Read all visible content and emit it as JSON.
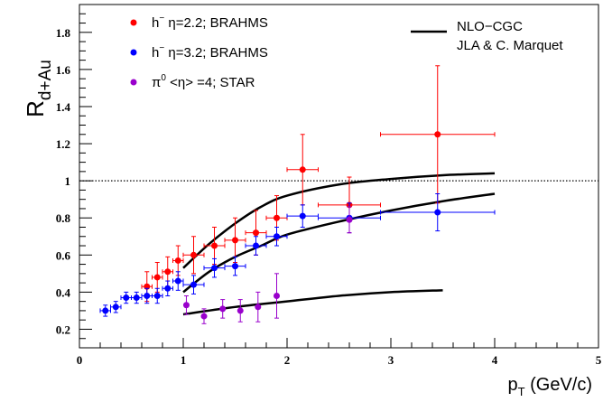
{
  "chart_data": {
    "type": "scatter",
    "xlabel_main": "p",
    "xlabel_sub": "T",
    "xlabel_unit": " (GeV/c)",
    "ylabel_main": "R",
    "ylabel_sub": "d+Au",
    "xlim": [
      0,
      5
    ],
    "ylim": [
      0.1,
      1.95
    ],
    "x_ticks": [
      0,
      1,
      2,
      3,
      4,
      5
    ],
    "y_ticks": [
      0.2,
      0.4,
      0.6,
      0.8,
      1,
      1.2,
      1.4,
      1.6,
      1.8
    ],
    "reference_line": {
      "y": 1,
      "style": "dotted"
    },
    "legend": {
      "placement": "top-left",
      "entries": [
        {
          "main": "h",
          "sup": "−",
          "rest": " η=2.2; BRAHMS",
          "color": "#ff0000"
        },
        {
          "main": "h",
          "sup": "−",
          "rest": " η=3.2; BRAHMS",
          "color": "#0000ff"
        },
        {
          "main": "π",
          "sup": "0",
          "rest": "  <η> =4; STAR",
          "color": "#9900cc"
        }
      ]
    },
    "theory_legend": {
      "placement": "top-right",
      "line1": "NLO−CGC",
      "line2": "JLA & C. Marquet"
    },
    "series": [
      {
        "color": "#ff0000",
        "points": [
          {
            "x": 0.65,
            "y": 0.43,
            "xerr": 0.05,
            "yerr": 0.08
          },
          {
            "x": 0.75,
            "y": 0.48,
            "xerr": 0.05,
            "yerr": 0.08
          },
          {
            "x": 0.85,
            "y": 0.51,
            "xerr": 0.05,
            "yerr": 0.08
          },
          {
            "x": 0.95,
            "y": 0.57,
            "xerr": 0.05,
            "yerr": 0.08
          },
          {
            "x": 1.1,
            "y": 0.6,
            "xerr": 0.1,
            "yerr": 0.1
          },
          {
            "x": 1.3,
            "y": 0.65,
            "xerr": 0.1,
            "yerr": 0.1
          },
          {
            "x": 1.5,
            "y": 0.68,
            "xerr": 0.1,
            "yerr": 0.12
          },
          {
            "x": 1.7,
            "y": 0.72,
            "xerr": 0.1,
            "yerr": 0.12
          },
          {
            "x": 1.9,
            "y": 0.8,
            "xerr": 0.1,
            "yerr": 0.12
          },
          {
            "x": 2.15,
            "y": 1.06,
            "xerr": 0.15,
            "yerr": 0.19
          },
          {
            "x": 2.6,
            "y": 0.87,
            "xerr": 0.3,
            "yerr": 0.15
          },
          {
            "x": 3.45,
            "y": 1.25,
            "xerr": 0.55,
            "yerr": 0.37
          }
        ]
      },
      {
        "color": "#0000ff",
        "points": [
          {
            "x": 0.25,
            "y": 0.3,
            "xerr": 0.05,
            "yerr": 0.03
          },
          {
            "x": 0.35,
            "y": 0.32,
            "xerr": 0.05,
            "yerr": 0.03
          },
          {
            "x": 0.45,
            "y": 0.37,
            "xerr": 0.05,
            "yerr": 0.03
          },
          {
            "x": 0.55,
            "y": 0.37,
            "xerr": 0.05,
            "yerr": 0.03
          },
          {
            "x": 0.65,
            "y": 0.38,
            "xerr": 0.05,
            "yerr": 0.04
          },
          {
            "x": 0.75,
            "y": 0.38,
            "xerr": 0.05,
            "yerr": 0.04
          },
          {
            "x": 0.85,
            "y": 0.42,
            "xerr": 0.05,
            "yerr": 0.04
          },
          {
            "x": 0.95,
            "y": 0.46,
            "xerr": 0.05,
            "yerr": 0.05
          },
          {
            "x": 1.1,
            "y": 0.44,
            "xerr": 0.1,
            "yerr": 0.05
          },
          {
            "x": 1.3,
            "y": 0.53,
            "xerr": 0.1,
            "yerr": 0.05
          },
          {
            "x": 1.5,
            "y": 0.54,
            "xerr": 0.1,
            "yerr": 0.05
          },
          {
            "x": 1.7,
            "y": 0.65,
            "xerr": 0.1,
            "yerr": 0.05
          },
          {
            "x": 1.9,
            "y": 0.7,
            "xerr": 0.1,
            "yerr": 0.05
          },
          {
            "x": 2.15,
            "y": 0.81,
            "xerr": 0.15,
            "yerr": 0.06
          },
          {
            "x": 2.6,
            "y": 0.8,
            "xerr": 0.3,
            "yerr": 0.08
          },
          {
            "x": 3.45,
            "y": 0.83,
            "xerr": 0.55,
            "yerr": 0.1
          }
        ]
      },
      {
        "color": "#9900cc",
        "points": [
          {
            "x": 1.03,
            "y": 0.33,
            "xerr": 0,
            "yerr": 0.05
          },
          {
            "x": 1.2,
            "y": 0.27,
            "xerr": 0,
            "yerr": 0.04
          },
          {
            "x": 1.38,
            "y": 0.31,
            "xerr": 0,
            "yerr": 0.05
          },
          {
            "x": 1.55,
            "y": 0.3,
            "xerr": 0,
            "yerr": 0.06
          },
          {
            "x": 1.72,
            "y": 0.32,
            "xerr": 0,
            "yerr": 0.08
          },
          {
            "x": 1.9,
            "y": 0.38,
            "xerr": 0,
            "yerr": 0.12
          },
          {
            "x": 2.6,
            "y": 0.79,
            "xerr": 0,
            "yerr": 0.07
          }
        ]
      }
    ],
    "theory_curves": [
      {
        "points": [
          [
            1.0,
            0.53
          ],
          [
            1.25,
            0.66
          ],
          [
            1.5,
            0.77
          ],
          [
            1.75,
            0.86
          ],
          [
            2.0,
            0.92
          ],
          [
            2.5,
            0.98
          ],
          [
            3.0,
            1.01
          ],
          [
            3.5,
            1.03
          ],
          [
            4.0,
            1.04
          ]
        ]
      },
      {
        "points": [
          [
            1.0,
            0.4
          ],
          [
            1.25,
            0.51
          ],
          [
            1.5,
            0.59
          ],
          [
            1.75,
            0.65
          ],
          [
            2.0,
            0.71
          ],
          [
            2.5,
            0.78
          ],
          [
            3.0,
            0.84
          ],
          [
            3.5,
            0.89
          ],
          [
            4.0,
            0.93
          ]
        ]
      },
      {
        "points": [
          [
            1.0,
            0.28
          ],
          [
            1.5,
            0.32
          ],
          [
            2.0,
            0.35
          ],
          [
            2.5,
            0.38
          ],
          [
            3.0,
            0.4
          ],
          [
            3.5,
            0.41
          ]
        ]
      }
    ]
  }
}
